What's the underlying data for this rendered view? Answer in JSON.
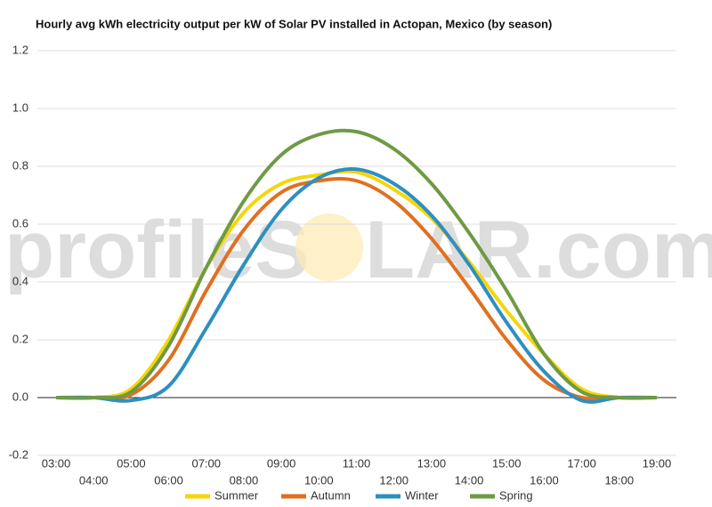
{
  "chart_data": {
    "type": "line",
    "title": "Hourly avg kWh electricity output per kW of Solar PV installed in Actopan, Mexico (by season)",
    "watermark": {
      "left": "profileS",
      "right": "LAR.com"
    },
    "categories": [
      "03:00",
      "04:00",
      "05:00",
      "06:00",
      "07:00",
      "08:00",
      "09:00",
      "10:00",
      "11:00",
      "12:00",
      "13:00",
      "14:00",
      "15:00",
      "16:00",
      "17:00",
      "18:00",
      "19:00"
    ],
    "series": [
      {
        "name": "Summer",
        "color": "#f5d60a",
        "values": [
          0,
          0,
          0.03,
          0.2,
          0.45,
          0.64,
          0.74,
          0.77,
          0.78,
          0.72,
          0.62,
          0.47,
          0.3,
          0.15,
          0.03,
          0,
          0
        ]
      },
      {
        "name": "Autumn",
        "color": "#e07020",
        "values": [
          0,
          0,
          0.01,
          0.13,
          0.37,
          0.58,
          0.71,
          0.75,
          0.75,
          0.68,
          0.55,
          0.38,
          0.2,
          0.06,
          0,
          0,
          0
        ]
      },
      {
        "name": "Winter",
        "color": "#2e8fc0",
        "values": [
          0,
          0,
          -0.01,
          0.04,
          0.24,
          0.46,
          0.65,
          0.76,
          0.79,
          0.74,
          0.63,
          0.46,
          0.26,
          0.09,
          -0.01,
          0,
          0
        ]
      },
      {
        "name": "Spring",
        "color": "#6f9a45",
        "values": [
          0,
          0,
          0.02,
          0.18,
          0.45,
          0.68,
          0.84,
          0.91,
          0.92,
          0.86,
          0.74,
          0.57,
          0.37,
          0.15,
          0.02,
          0,
          0
        ]
      }
    ],
    "ylim": [
      -0.2,
      1.2
    ],
    "yticks": [
      -0.2,
      {
        "value": 0,
        "label": "0.0"
      },
      0.2,
      0.4,
      0.6,
      0.8,
      {
        "value": 1,
        "label": "1.0"
      },
      1.2
    ],
    "grid": true,
    "legend": "bottom"
  }
}
